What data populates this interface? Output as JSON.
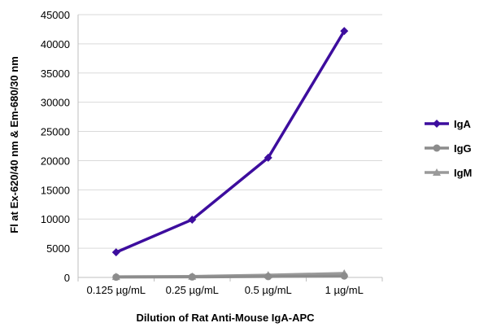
{
  "chart_data": {
    "type": "line",
    "categories": [
      "0.125 µg/mL",
      "0.25 µg/mL",
      "0.5 µg/mL",
      "1 µg/mL"
    ],
    "series": [
      {
        "name": "IgA",
        "values": [
          4300,
          9900,
          20500,
          42200
        ],
        "color": "#3d0d9e",
        "marker": "diamond"
      },
      {
        "name": "IgG",
        "values": [
          50,
          80,
          150,
          250
        ],
        "color": "#8c8c8c",
        "marker": "circle"
      },
      {
        "name": "IgM",
        "values": [
          120,
          180,
          400,
          700
        ],
        "color": "#9a9a9a",
        "marker": "triangle"
      }
    ],
    "xlabel": "Dilution of Rat Anti-Mouse IgA-APC",
    "ylabel": "Fl at Ex-620/40 nm & Em-680/30 nm",
    "ylim": [
      0,
      45000
    ],
    "yticks": [
      0,
      5000,
      10000,
      15000,
      20000,
      25000,
      30000,
      35000,
      40000,
      45000
    ],
    "grid": true,
    "legend": "right"
  }
}
